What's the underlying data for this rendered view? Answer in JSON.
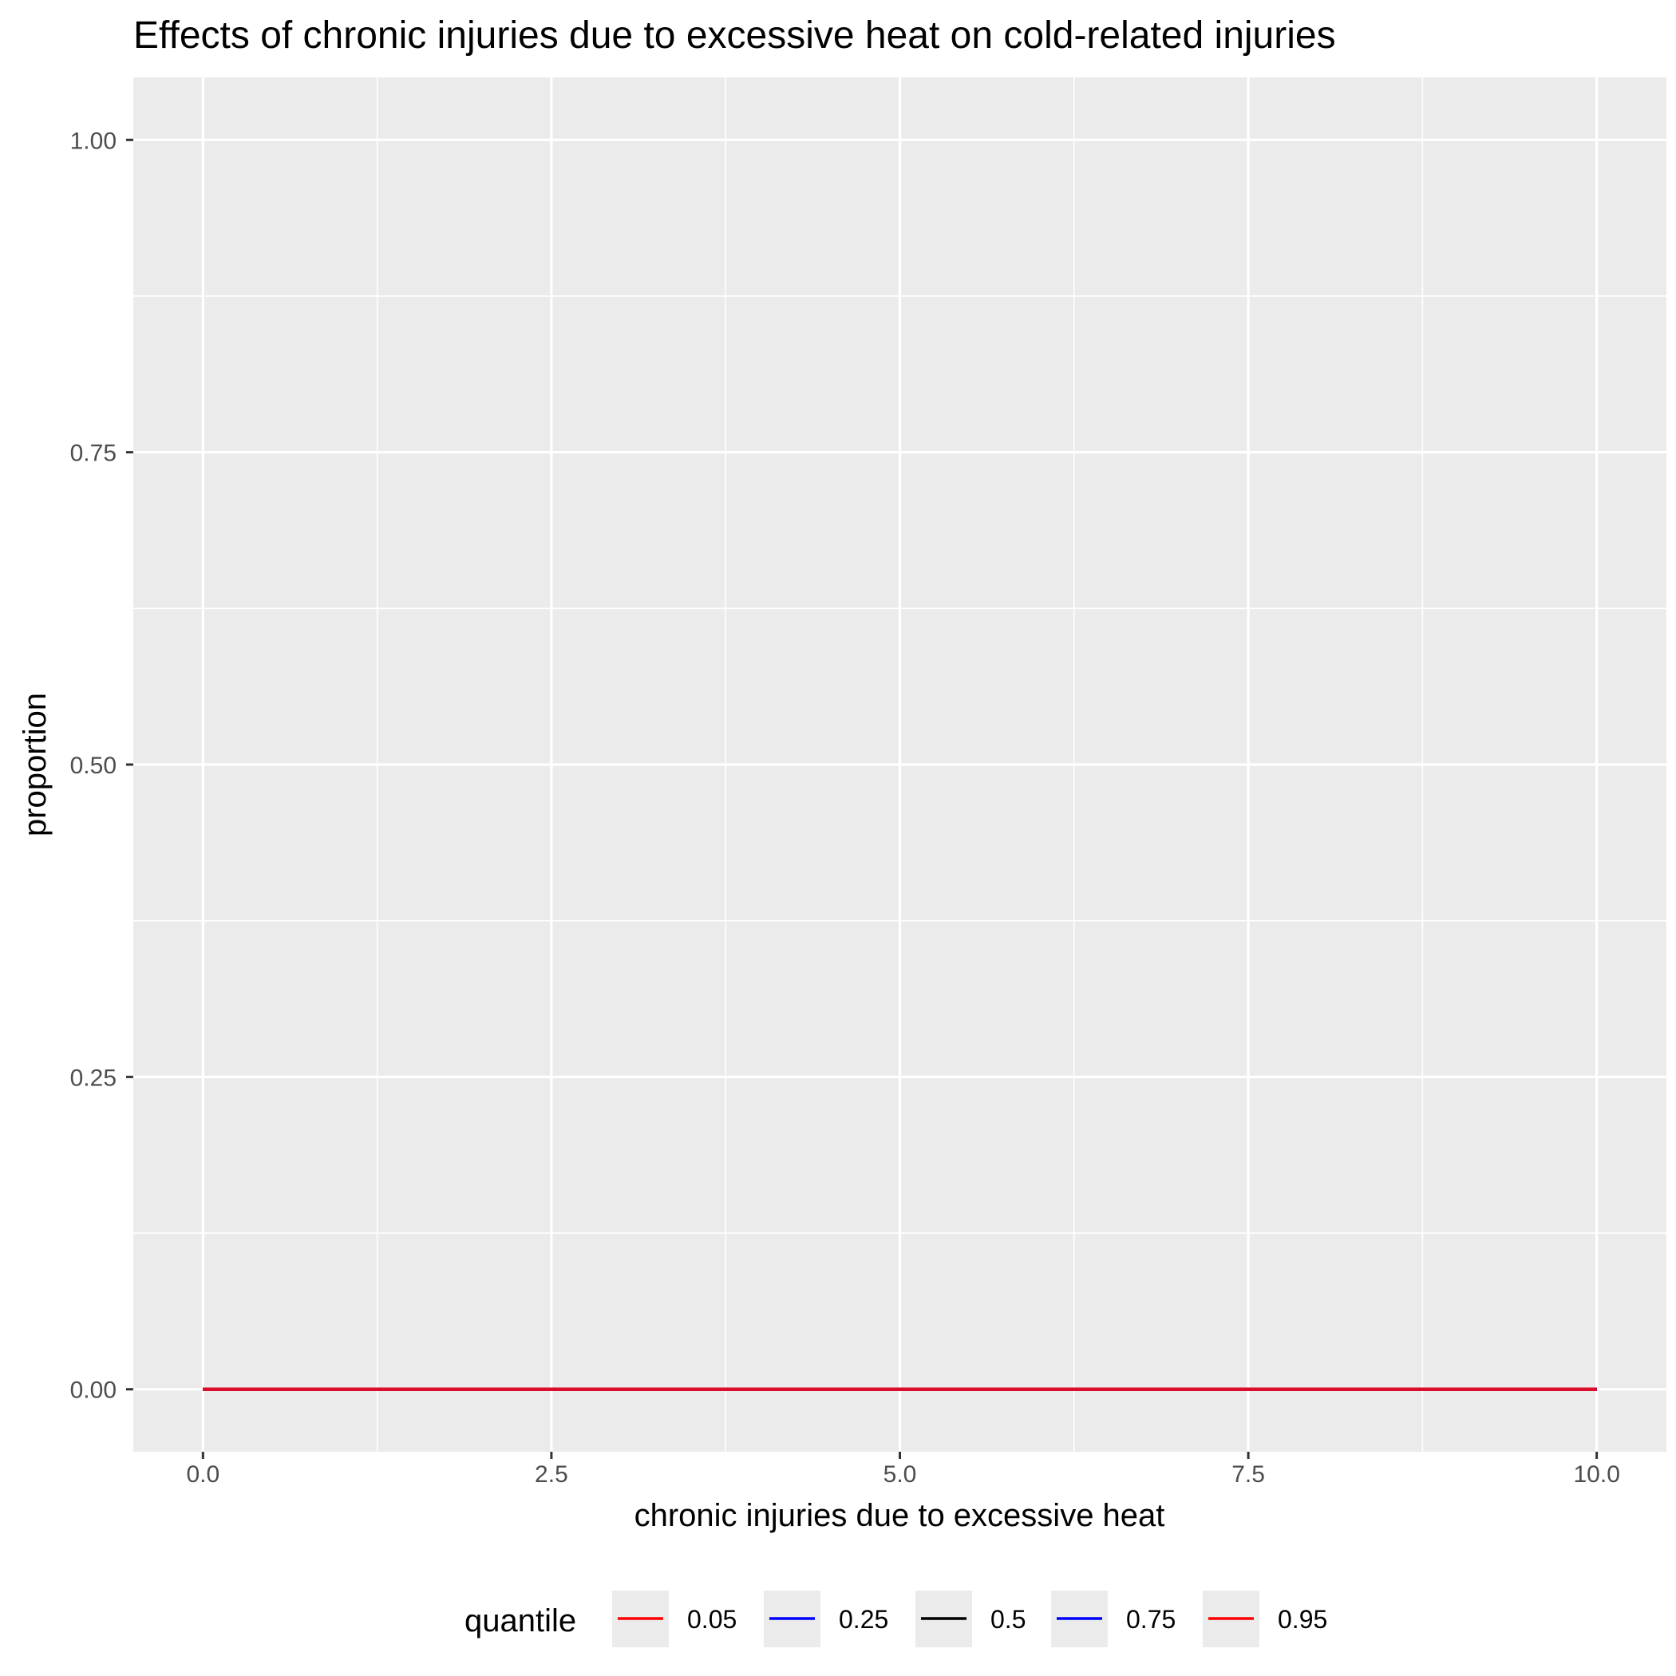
{
  "chart_data": {
    "type": "line",
    "title": "Effects of chronic injuries due to excessive heat on cold-related injuries",
    "xlabel": "chronic injuries due to excessive heat",
    "ylabel": "proportion",
    "xlim": [
      -0.5,
      10.5
    ],
    "ylim": [
      -0.05,
      1.05
    ],
    "x_ticks": [
      0,
      2.5,
      5,
      7.5,
      10
    ],
    "x_tick_labels": [
      "0.0",
      "2.5",
      "5.0",
      "7.5",
      "10.0"
    ],
    "y_ticks": [
      0,
      0.25,
      0.5,
      0.75,
      1
    ],
    "y_tick_labels": [
      "0.00",
      "0.25",
      "0.50",
      "0.75",
      "1.00"
    ],
    "grid": true,
    "legend": {
      "title": "quantile",
      "position": "bottom"
    },
    "series": [
      {
        "name": "0.05",
        "color": "#ff0000",
        "x": [
          0,
          10
        ],
        "y": [
          0,
          0
        ]
      },
      {
        "name": "0.25",
        "color": "#0000ff",
        "x": [
          0,
          10
        ],
        "y": [
          0,
          0
        ]
      },
      {
        "name": "0.5",
        "color": "#000000",
        "x": [
          0,
          10
        ],
        "y": [
          0,
          0
        ]
      },
      {
        "name": "0.75",
        "color": "#0000ff",
        "x": [
          0,
          10
        ],
        "y": [
          0,
          0
        ]
      },
      {
        "name": "0.95",
        "color": "#ff0000",
        "x": [
          0,
          10
        ],
        "y": [
          0,
          0
        ]
      }
    ],
    "colors": {
      "panel_background": "#ebebeb",
      "grid": "#ffffff",
      "overlap_line": "#dc0d2a"
    }
  }
}
